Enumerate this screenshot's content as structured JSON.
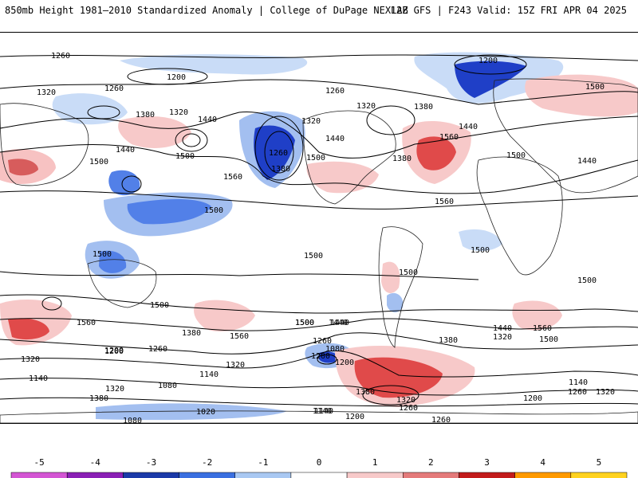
{
  "header": {
    "left_title": "850mb Height 1981–2010 Standardized Anomaly | College of DuPage NEXLAB",
    "right_title": "12Z GFS | F243 Valid: 15Z FRI APR 04 2025"
  },
  "map": {
    "contour_labels": [
      "1260",
      "1200",
      "1320",
      "1260",
      "1380",
      "1320",
      "1440",
      "1500",
      "1560",
      "1500",
      "1380",
      "1260",
      "1320",
      "1440",
      "1500",
      "1380",
      "1320",
      "1260",
      "1200",
      "1500",
      "1440",
      "1560",
      "1500",
      "1440",
      "1380",
      "1560",
      "1500",
      "1440",
      "1500",
      "1500",
      "1500",
      "1560",
      "1500",
      "1500",
      "1500",
      "1380",
      "1320",
      "1200",
      "1260",
      "1140",
      "1080",
      "1020",
      "1140",
      "1080",
      "1320",
      "1380",
      "1440",
      "1500",
      "1560",
      "1500",
      "1440",
      "1380",
      "1320",
      "1260",
      "1200",
      "1140",
      "1260",
      "1320",
      "1200",
      "1200",
      "1140",
      "1260",
      "1560",
      "1440",
      "1500",
      "1320",
      "1200",
      "1260",
      "1140",
      "1080",
      "1200",
      "1380",
      "1320"
    ],
    "colors": {
      "anom_neg_1": "#c9dcf7",
      "anom_neg_2": "#a3bff0",
      "anom_neg_3": "#5280e8",
      "anom_neg_4": "#1f3fc7",
      "anom_pos_1": "#f7c9c9",
      "anom_pos_2": "#f29a9a",
      "anom_pos_3": "#e04a4a",
      "anom_pos_4": "#b00000"
    }
  },
  "colorbar": {
    "ticks": [
      "-5",
      "-4",
      "-3",
      "-2",
      "-1",
      "0",
      "1",
      "2",
      "3",
      "4",
      "5"
    ],
    "colors": [
      "#d455d4",
      "#8a1fb5",
      "#1b3aa8",
      "#3a6fe0",
      "#a9c8f2",
      "#ffffff",
      "#f7c9c9",
      "#e47a7a",
      "#c21b1b",
      "#ff9a00",
      "#ffd21f"
    ]
  }
}
